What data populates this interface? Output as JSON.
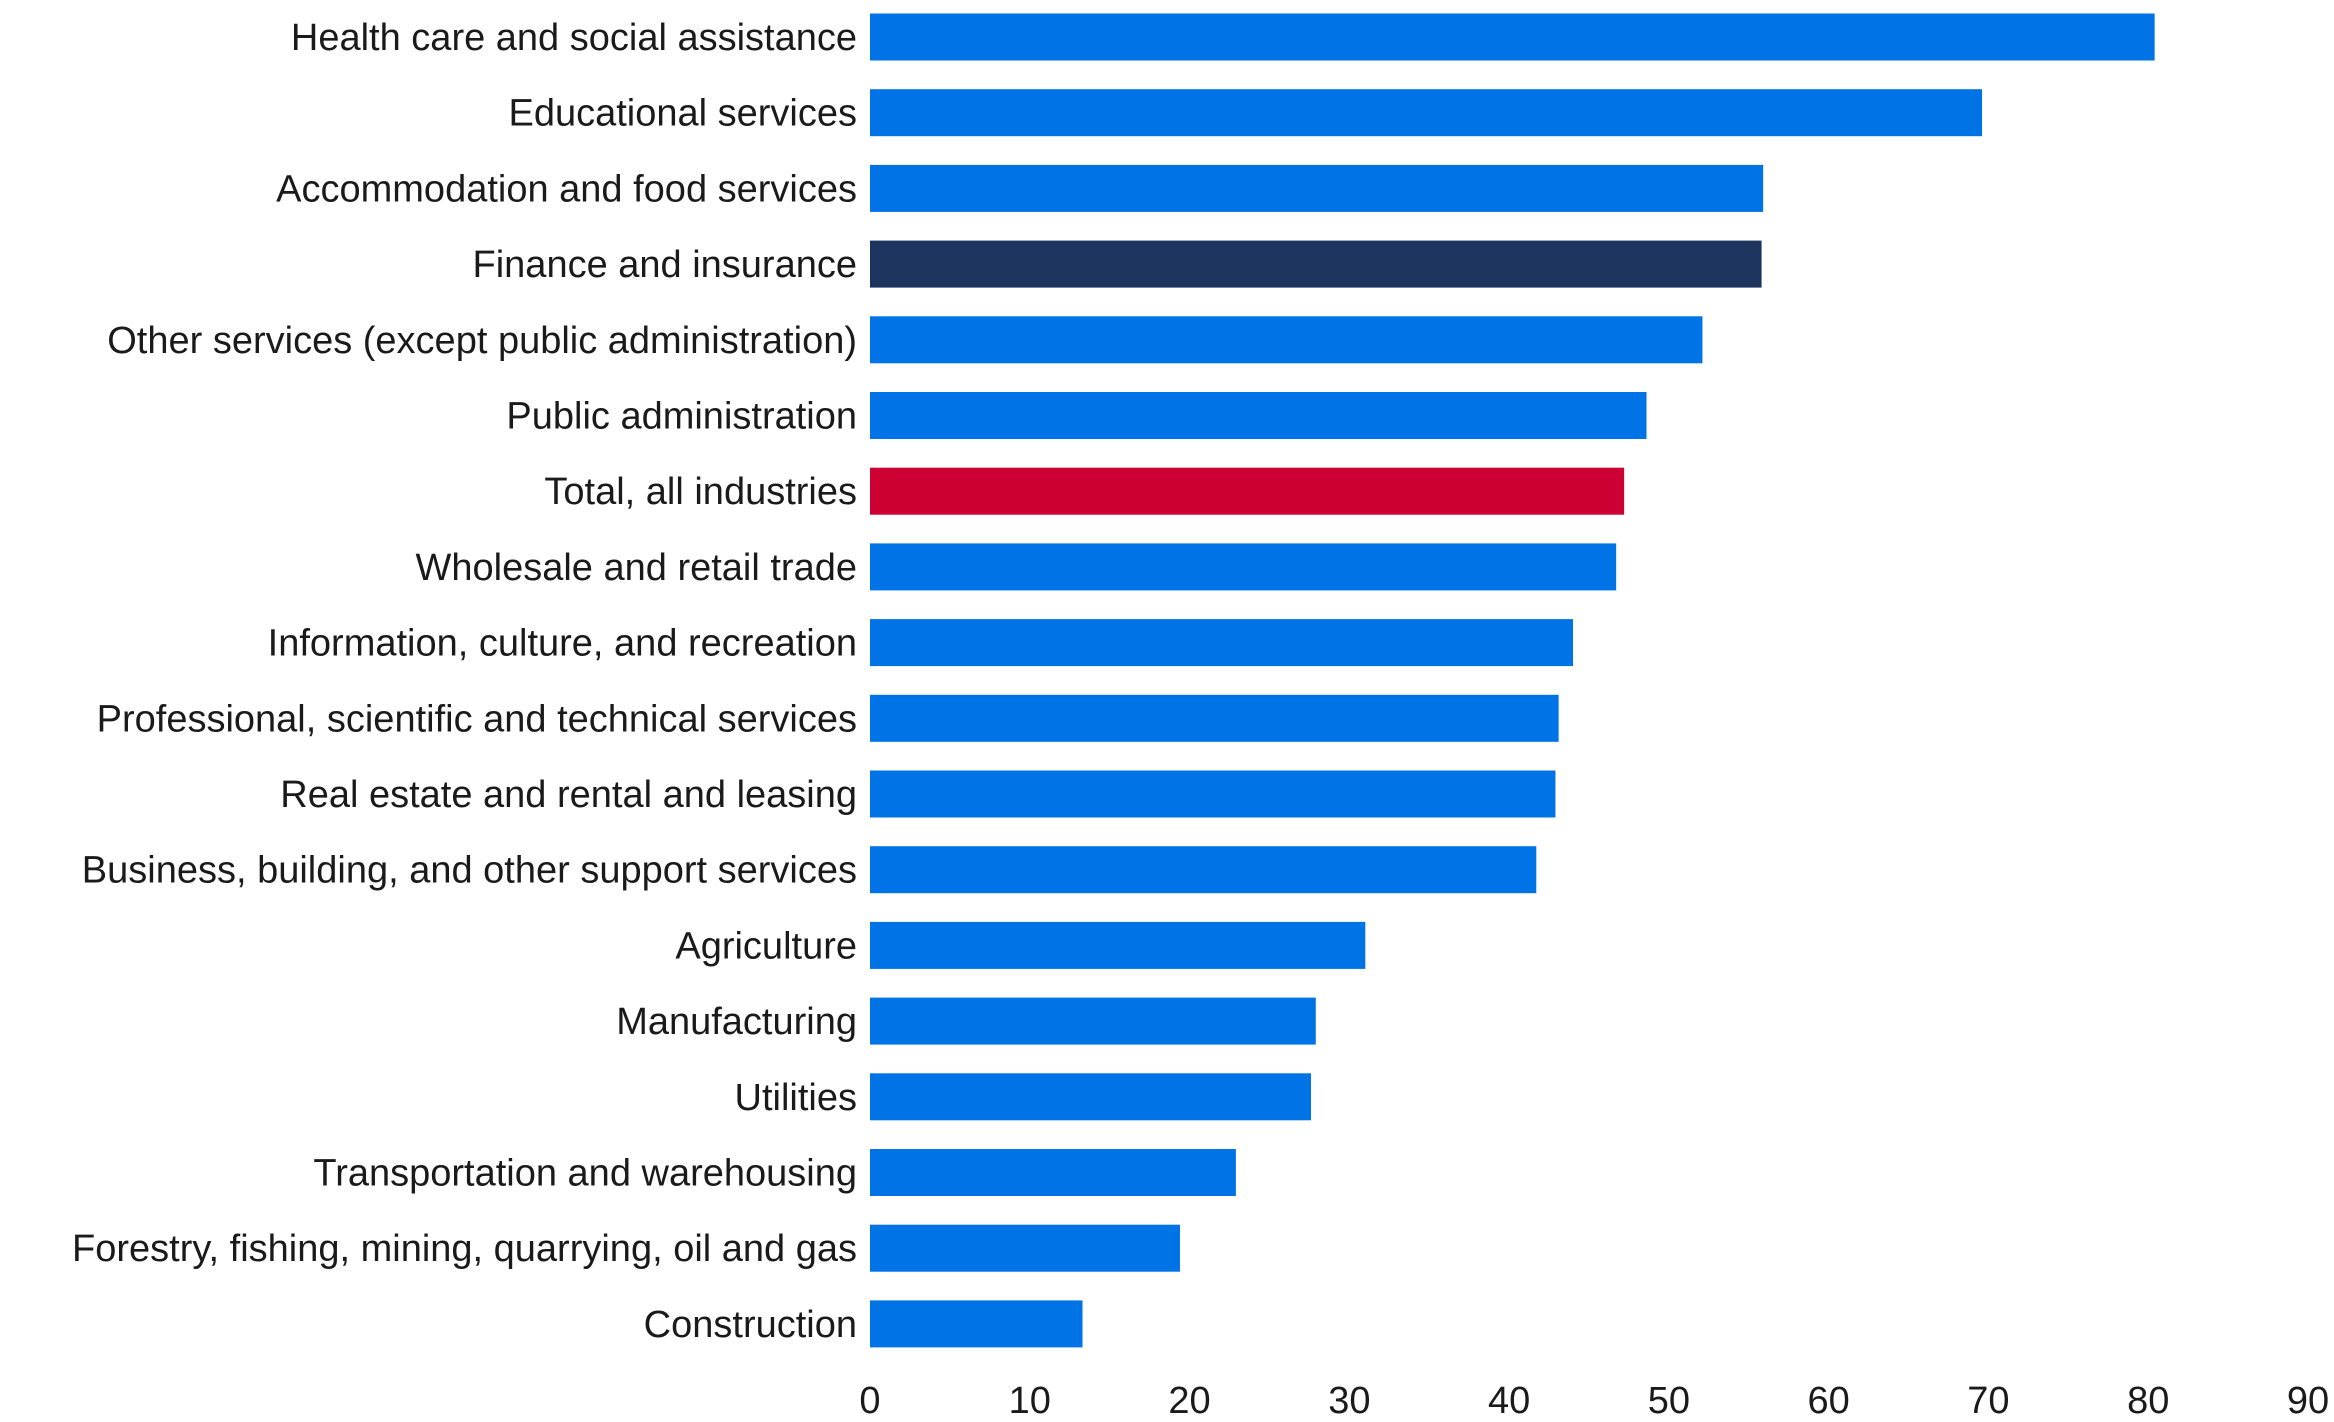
{
  "chart_data": {
    "type": "bar",
    "orientation": "horizontal",
    "title": "",
    "xlabel": "",
    "ylabel": "",
    "xlim": [
      0,
      90
    ],
    "xticks": [
      0,
      10,
      20,
      30,
      40,
      50,
      60,
      70,
      80,
      90
    ],
    "grid": false,
    "categories": [
      "Health care and social assistance",
      "Educational services",
      "Accommodation and food services",
      "Finance and insurance",
      "Other services (except public administration)",
      "Public administration",
      "Total, all industries",
      "Wholesale and retail trade",
      "Information, culture, and recreation",
      "Professional, scientific and technical services",
      "Real estate and rental and leasing",
      "Business, building, and other support services",
      "Agriculture",
      "Manufacturing",
      "Utilities",
      "Transportation and warehousing",
      "Forestry, fishing, mining, quarrying, oil and gas",
      "Construction"
    ],
    "values": [
      80.4,
      69.6,
      55.9,
      55.8,
      52.1,
      48.6,
      47.2,
      46.7,
      44.0,
      43.1,
      42.9,
      41.7,
      31.0,
      27.9,
      27.6,
      22.9,
      19.4,
      13.3
    ],
    "highlight": {
      "Finance and insurance": "dark",
      "Total, all industries": "red"
    }
  },
  "colors": {
    "default": "#0073E6",
    "dark": "#1D355E",
    "red": "#CC0033"
  }
}
